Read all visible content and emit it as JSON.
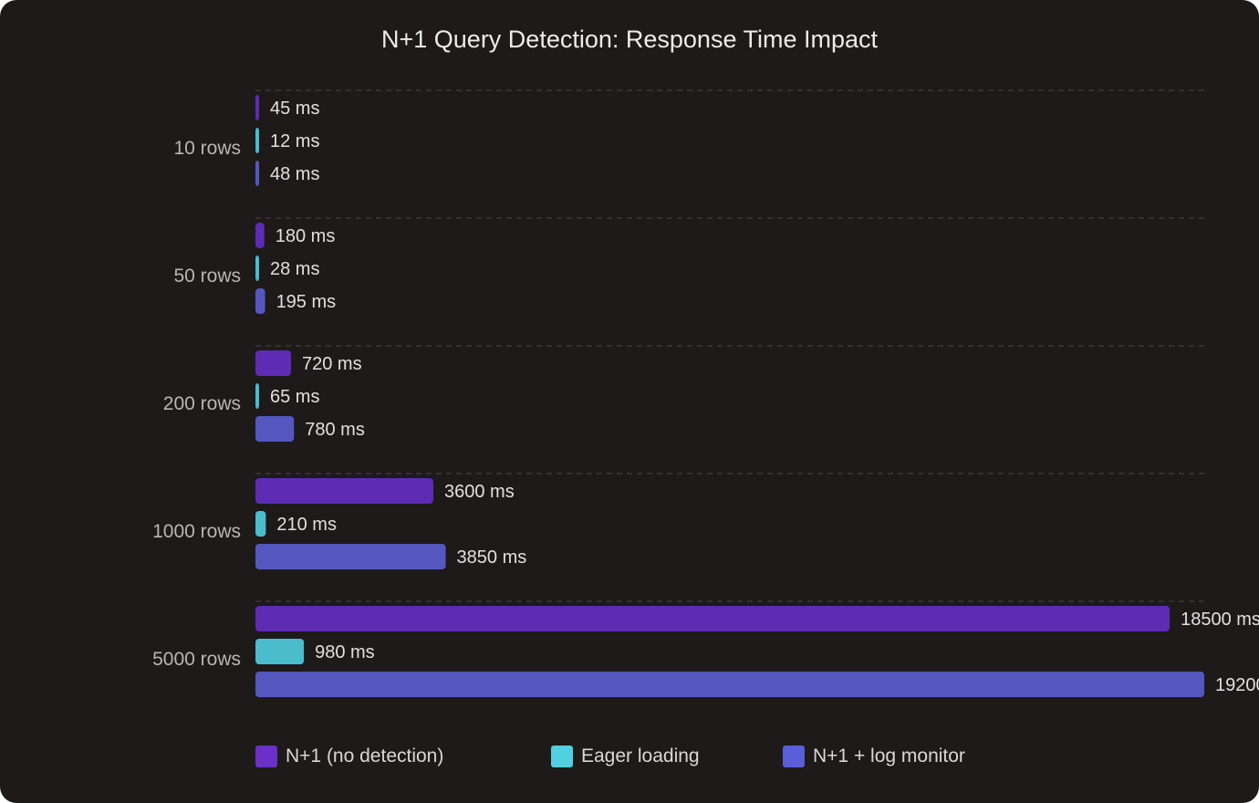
{
  "chart_data": {
    "type": "bar",
    "orientation": "horizontal",
    "title": "N+1 Query Detection: Response Time Impact",
    "categories": [
      "10 rows",
      "50 rows",
      "200 rows",
      "1000 rows",
      "5000 rows"
    ],
    "series": [
      {
        "name": "N+1 (no detection)",
        "color": "#5e2bb5",
        "legend_color": "#6a30c8",
        "values": [
          45,
          180,
          720,
          3600,
          18500
        ]
      },
      {
        "name": "Eager loading",
        "color": "#4bbccc",
        "legend_color": "#50d0e0",
        "values": [
          12,
          28,
          65,
          210,
          980
        ]
      },
      {
        "name": "N+1 + log monitor",
        "color": "#5557bf",
        "legend_color": "#5a5ed8",
        "values": [
          48,
          195,
          780,
          3850,
          19200
        ]
      }
    ],
    "value_unit": "ms",
    "xlim": [
      0,
      19200
    ],
    "grid": "dashed lines between categories",
    "legend_position": "bottom",
    "xlabel": "",
    "ylabel": ""
  }
}
